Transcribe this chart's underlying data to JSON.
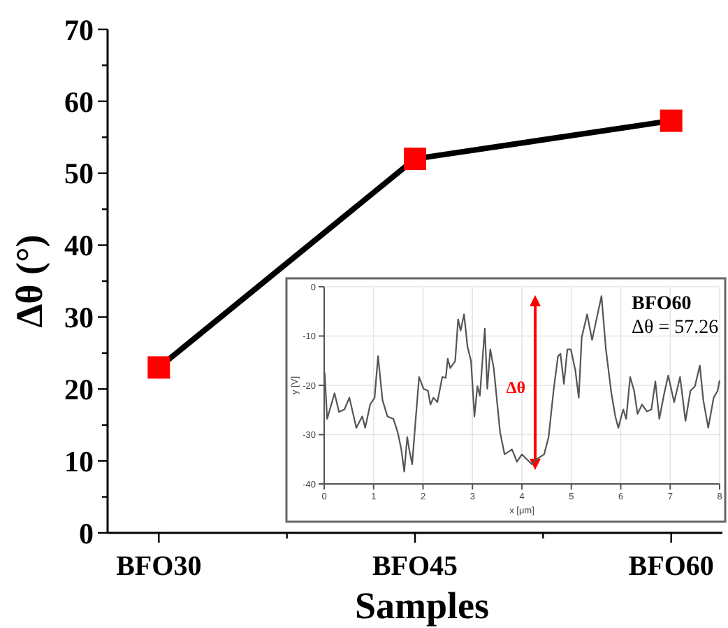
{
  "chart_data": [
    {
      "type": "line",
      "xlabel": "Samples",
      "ylabel": "Δθ (°)",
      "categories": [
        "BFO30",
        "BFO45",
        "BFO60"
      ],
      "marker": "square",
      "series": [
        {
          "color": "#ff0000",
          "values": [
            23,
            52,
            57.3
          ]
        }
      ],
      "ylim": [
        0,
        70
      ],
      "yticks": [
        0,
        {
          "value": 5,
          "label": null
        },
        10,
        {
          "value": 15,
          "label": null
        },
        20,
        {
          "value": 25,
          "label": null
        },
        30,
        {
          "value": 35,
          "label": null
        },
        40,
        {
          "value": 45,
          "label": null
        },
        50,
        {
          "value": 55,
          "label": null
        },
        60,
        {
          "value": 65,
          "label": null
        },
        70
      ]
    },
    {
      "type": "line",
      "xlabel": "x [μm]",
      "ylabel": "y [V]",
      "grid": true,
      "xlim": [
        0,
        8
      ],
      "xticks": [
        0,
        1,
        2,
        3,
        4,
        5,
        6,
        7,
        8
      ],
      "ylim": [
        -40,
        0
      ],
      "yticks": [
        -40,
        -30,
        -20,
        -10,
        0
      ],
      "annotations": [
        "BFO60",
        "Δθ = 57.26",
        "Δθ"
      ],
      "series": [
        {
          "color": "#555555",
          "x": [
            0.01,
            0.06,
            0.21,
            0.3,
            0.41,
            0.51,
            0.65,
            0.77,
            0.83,
            0.93,
            1.02,
            1.09,
            1.18,
            1.28,
            1.4,
            1.49,
            1.56,
            1.62,
            1.68,
            1.72,
            1.78,
            1.85,
            1.92,
            2.01,
            2.1,
            2.15,
            2.21,
            2.29,
            2.39,
            2.46,
            2.5,
            2.55,
            2.65,
            2.71,
            2.76,
            2.83,
            2.9,
            2.97,
            3.04,
            3.1,
            3.15,
            3.25,
            3.3,
            3.36,
            3.43,
            3.56,
            3.65,
            3.8,
            3.9,
            4.0,
            4.1,
            4.2,
            4.3,
            4.45,
            4.54,
            4.64,
            4.73,
            4.78,
            4.85,
            4.92,
            4.99,
            5.08,
            5.15,
            5.21,
            5.32,
            5.42,
            5.55,
            5.61,
            5.7,
            5.81,
            5.89,
            5.95,
            6.05,
            6.11,
            6.19,
            6.27,
            6.34,
            6.43,
            6.53,
            6.62,
            6.7,
            6.78,
            6.87,
            6.96,
            7.08,
            7.2,
            7.31,
            7.41,
            7.5,
            7.6,
            7.67,
            7.77,
            7.88,
            7.96,
            8.0
          ],
          "values": [
            -17.4,
            -26.8,
            -21.6,
            -25.4,
            -24.9,
            -22.5,
            -28.6,
            -26.3,
            -28.6,
            -23.9,
            -22.5,
            -14.1,
            -23.0,
            -26.3,
            -26.8,
            -29.6,
            -33,
            -37.5,
            -30.5,
            -33,
            -36,
            -27,
            -18.3,
            -20.7,
            -21.1,
            -23.9,
            -22.5,
            -23.4,
            -18.3,
            -18.5,
            -14.6,
            -16.5,
            -15.1,
            -6.6,
            -8.9,
            -5.6,
            -12.2,
            -15.0,
            -26.3,
            -20.2,
            -22.1,
            -8.5,
            -20.7,
            -12.7,
            -16.5,
            -29.6,
            -34,
            -33,
            -35.5,
            -34,
            -35,
            -36,
            -35,
            -34,
            -30.5,
            -21.1,
            -14.1,
            -13.6,
            -19.7,
            -12.7,
            -12.7,
            -16.9,
            -22.5,
            -10.3,
            -5.6,
            -10.8,
            -4.7,
            -1.9,
            -12.7,
            -21.6,
            -26.3,
            -28.6,
            -24.9,
            -26.8,
            -18.3,
            -21.1,
            -25.8,
            -23.9,
            -25.3,
            -24.9,
            -19.2,
            -26.8,
            -22.1,
            -18.0,
            -23.4,
            -18.3,
            -27.2,
            -21.1,
            -20.2,
            -16.0,
            -23.0,
            -28.6,
            -22.5,
            -21.1,
            -19.0
          ]
        }
      ]
    }
  ]
}
